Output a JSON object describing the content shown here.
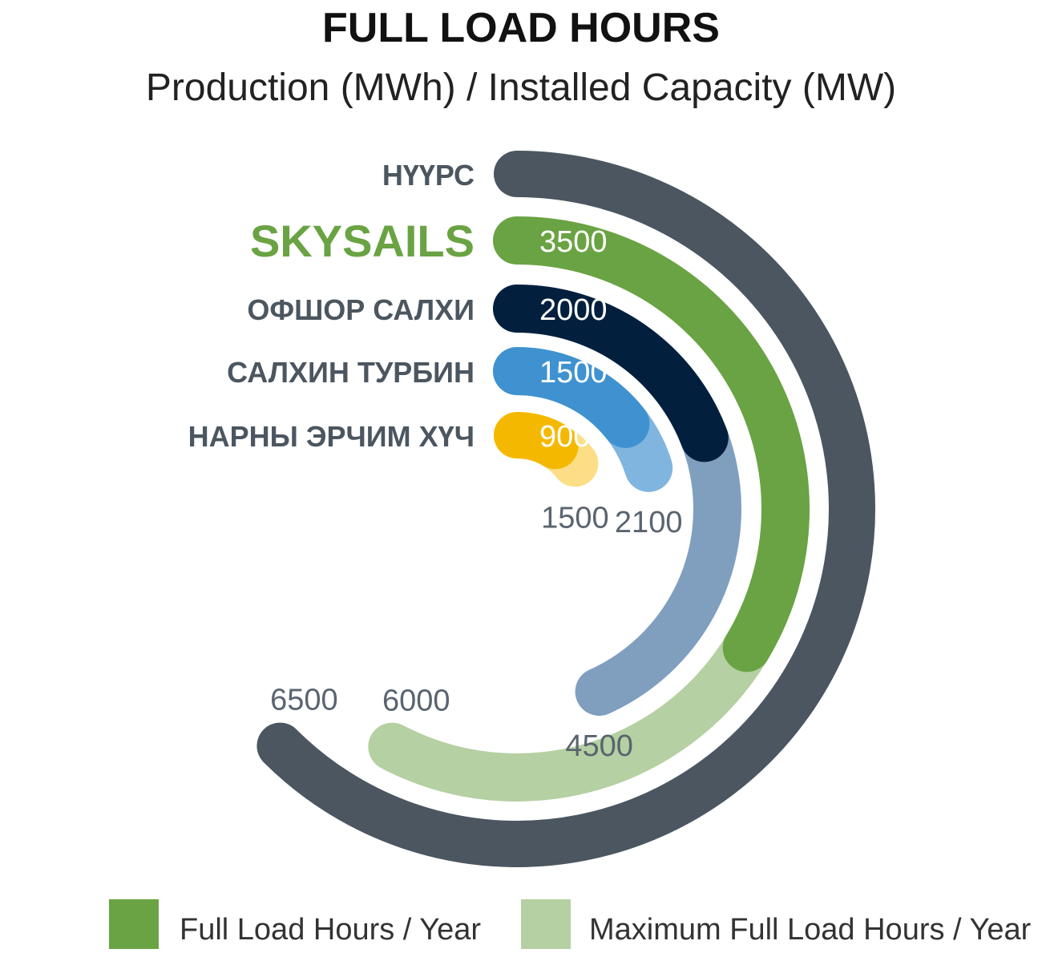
{
  "chart_data": {
    "type": "radial-bar",
    "title": "FULL LOAD HOURS",
    "subtitle": "Production (MWh) / Installed Capacity (MW)",
    "scale_max": 6500,
    "series": [
      {
        "name": "Full Load Hours / Year",
        "color": "#6aa343"
      },
      {
        "name": "Maximum Full Load Hours / Year",
        "color": "#b5d0a2"
      }
    ],
    "categories": [
      {
        "label": "НҮҮРС",
        "label_color": "#4b5660",
        "bar_color": "#4b5660",
        "max_color": "#4b5660",
        "full_load": null,
        "max_full_load": 6500
      },
      {
        "label": "SKYSAILS",
        "label_color": "#6aa343",
        "bar_color": "#6aa343",
        "max_color": "#b5d0a2",
        "full_load": 3500,
        "max_full_load": 6000
      },
      {
        "label": "ОФШОР САЛХИ",
        "label_color": "#4b5660",
        "bar_color": "#02203d",
        "max_color": "#809fbe",
        "full_load": 2000,
        "max_full_load": 4500
      },
      {
        "label": "САЛХИН ТУРБИН",
        "label_color": "#4b5660",
        "bar_color": "#3f92cf",
        "max_color": "#80b5df",
        "full_load": 1500,
        "max_full_load": 2100
      },
      {
        "label": "НАРНЫ ЭРЧИМ ХҮЧ",
        "label_color": "#4b5660",
        "bar_color": "#f5b800",
        "max_color": "#fbde86",
        "full_load": 900,
        "max_full_load": 1500
      }
    ]
  }
}
